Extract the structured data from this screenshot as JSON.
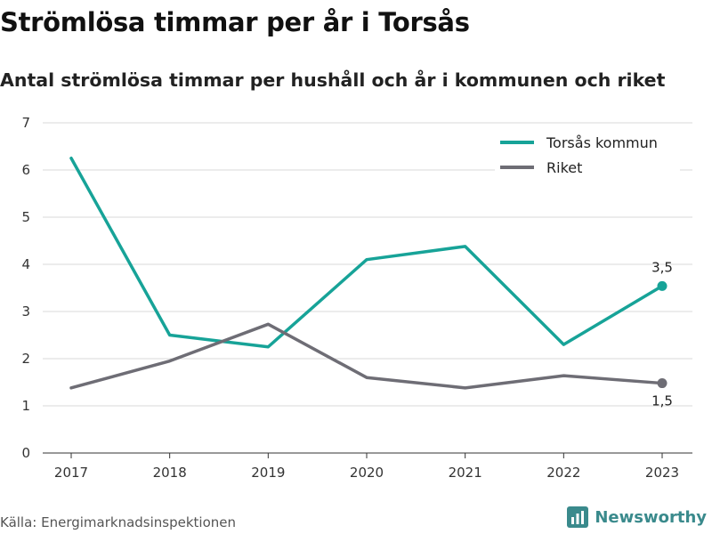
{
  "title": "Strömlösa timmar per år i Torsås",
  "subtitle": "Antal strömlösa timmar per hushåll och år i kommunen och riket",
  "source": "Källa: Energimarknadsinspektionen",
  "brand": "Newsworthy",
  "colors": {
    "torsas": "#17a398",
    "riket": "#6e6d75",
    "grid": "#d9d9d9",
    "brand": "#3a8a8c"
  },
  "chart_data": {
    "type": "line",
    "x": [
      "2017",
      "2018",
      "2019",
      "2020",
      "2021",
      "2022",
      "2023"
    ],
    "yticks": [
      "0",
      "1",
      "2",
      "3",
      "4",
      "5",
      "6",
      "7"
    ],
    "ylim": [
      0,
      7
    ],
    "grid": true,
    "legend_position": "top-right",
    "series": [
      {
        "name": "Torsås kommun",
        "color": "#17a398",
        "values": [
          6.25,
          2.5,
          2.25,
          4.1,
          4.38,
          2.3,
          3.54
        ],
        "end_label": "3,5"
      },
      {
        "name": "Riket",
        "color": "#6e6d75",
        "values": [
          1.38,
          1.95,
          2.73,
          1.6,
          1.38,
          1.64,
          1.48
        ],
        "end_label": "1,5"
      }
    ]
  }
}
